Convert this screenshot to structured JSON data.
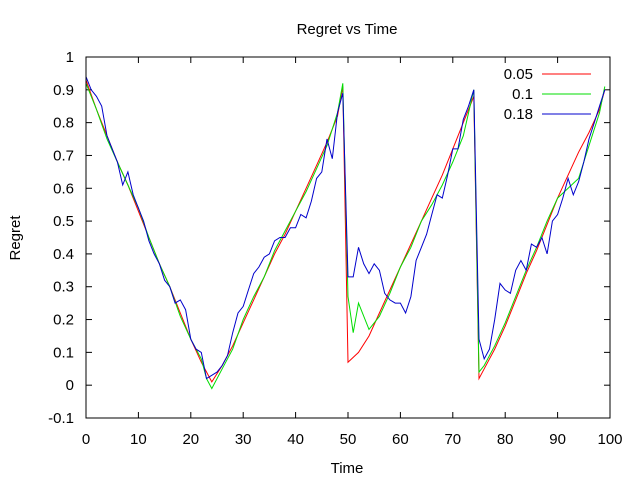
{
  "chart_data": {
    "type": "line",
    "title": "Regret vs Time",
    "xlabel": "Time",
    "ylabel": "Regret",
    "xlim": [
      0,
      100
    ],
    "ylim": [
      -0.1,
      1
    ],
    "xticks": [
      "0",
      "10",
      "20",
      "30",
      "40",
      "50",
      "60",
      "70",
      "80",
      "90",
      "100"
    ],
    "yticks": [
      "-0.1",
      "0",
      "0.1",
      "0.2",
      "0.3",
      "0.4",
      "0.5",
      "0.6",
      "0.7",
      "0.8",
      "0.9",
      "1"
    ],
    "grid": false,
    "legend_position": "top-right",
    "series": [
      {
        "name": "0.05",
        "color": "#ff0000",
        "x": [
          0,
          2,
          4,
          6,
          8,
          10,
          12,
          14,
          16,
          18,
          20,
          22,
          24,
          26,
          28,
          30,
          32,
          34,
          36,
          38,
          40,
          42,
          44,
          46,
          48,
          49,
          50,
          52,
          54,
          56,
          58,
          60,
          62,
          64,
          66,
          68,
          70,
          72,
          74,
          75,
          76,
          78,
          80,
          82,
          84,
          86,
          88,
          90,
          92,
          94,
          96,
          98,
          99
        ],
        "y": [
          0.93,
          0.84,
          0.76,
          0.68,
          0.61,
          0.53,
          0.45,
          0.37,
          0.3,
          0.22,
          0.14,
          0.07,
          0.01,
          0.06,
          0.12,
          0.19,
          0.26,
          0.33,
          0.4,
          0.46,
          0.53,
          0.6,
          0.67,
          0.74,
          0.82,
          0.91,
          0.07,
          0.1,
          0.15,
          0.22,
          0.29,
          0.36,
          0.43,
          0.5,
          0.57,
          0.64,
          0.72,
          0.8,
          0.88,
          0.02,
          0.05,
          0.11,
          0.18,
          0.26,
          0.34,
          0.41,
          0.49,
          0.57,
          0.64,
          0.71,
          0.77,
          0.84,
          0.9
        ]
      },
      {
        "name": "0.1",
        "color": "#00dd00",
        "x": [
          0,
          2,
          4,
          6,
          8,
          10,
          12,
          14,
          16,
          18,
          20,
          22,
          23,
          24,
          26,
          28,
          30,
          32,
          34,
          36,
          38,
          40,
          42,
          44,
          46,
          48,
          49,
          50,
          51,
          52,
          54,
          56,
          58,
          60,
          62,
          64,
          66,
          68,
          70,
          72,
          74,
          75,
          76,
          78,
          80,
          82,
          84,
          86,
          88,
          90,
          92,
          94,
          96,
          98,
          99
        ],
        "y": [
          0.92,
          0.84,
          0.75,
          0.68,
          0.61,
          0.54,
          0.45,
          0.37,
          0.3,
          0.21,
          0.14,
          0.08,
          0.02,
          -0.01,
          0.05,
          0.11,
          0.2,
          0.27,
          0.33,
          0.41,
          0.47,
          0.53,
          0.59,
          0.66,
          0.73,
          0.83,
          0.92,
          0.27,
          0.16,
          0.25,
          0.17,
          0.21,
          0.28,
          0.36,
          0.42,
          0.5,
          0.55,
          0.61,
          0.68,
          0.76,
          0.9,
          0.04,
          0.06,
          0.12,
          0.19,
          0.27,
          0.35,
          0.42,
          0.5,
          0.57,
          0.6,
          0.63,
          0.73,
          0.83,
          0.91
        ]
      },
      {
        "name": "0.18",
        "color": "#0000cc",
        "x": [
          0,
          1,
          2,
          3,
          4,
          5,
          6,
          7,
          8,
          9,
          10,
          11,
          12,
          13,
          14,
          15,
          16,
          17,
          18,
          19,
          20,
          21,
          22,
          23,
          24,
          25,
          26,
          27,
          28,
          29,
          30,
          31,
          32,
          33,
          34,
          35,
          36,
          37,
          38,
          39,
          40,
          41,
          42,
          43,
          44,
          45,
          46,
          47,
          48,
          49,
          50,
          51,
          52,
          53,
          54,
          55,
          56,
          57,
          58,
          59,
          60,
          61,
          62,
          63,
          64,
          65,
          66,
          67,
          68,
          69,
          70,
          71,
          72,
          73,
          74,
          75,
          76,
          77,
          78,
          79,
          80,
          81,
          82,
          83,
          84,
          85,
          86,
          87,
          88,
          89,
          90,
          91,
          92,
          93,
          94,
          95,
          96,
          97,
          98,
          99
        ],
        "y": [
          0.94,
          0.9,
          0.88,
          0.85,
          0.76,
          0.72,
          0.68,
          0.61,
          0.65,
          0.58,
          0.54,
          0.5,
          0.44,
          0.4,
          0.37,
          0.32,
          0.3,
          0.25,
          0.26,
          0.23,
          0.14,
          0.11,
          0.1,
          0.02,
          0.03,
          0.04,
          0.06,
          0.09,
          0.16,
          0.22,
          0.24,
          0.29,
          0.34,
          0.36,
          0.39,
          0.4,
          0.44,
          0.45,
          0.45,
          0.48,
          0.48,
          0.52,
          0.51,
          0.56,
          0.63,
          0.65,
          0.75,
          0.69,
          0.83,
          0.89,
          0.33,
          0.33,
          0.42,
          0.37,
          0.34,
          0.37,
          0.35,
          0.28,
          0.26,
          0.25,
          0.25,
          0.22,
          0.27,
          0.38,
          0.42,
          0.46,
          0.52,
          0.58,
          0.57,
          0.64,
          0.72,
          0.72,
          0.81,
          0.85,
          0.9,
          0.14,
          0.08,
          0.11,
          0.2,
          0.31,
          0.29,
          0.28,
          0.35,
          0.38,
          0.35,
          0.43,
          0.42,
          0.45,
          0.4,
          0.5,
          0.52,
          0.57,
          0.63,
          0.58,
          0.62,
          0.68,
          0.75,
          0.8,
          0.85,
          0.9
        ]
      }
    ]
  }
}
